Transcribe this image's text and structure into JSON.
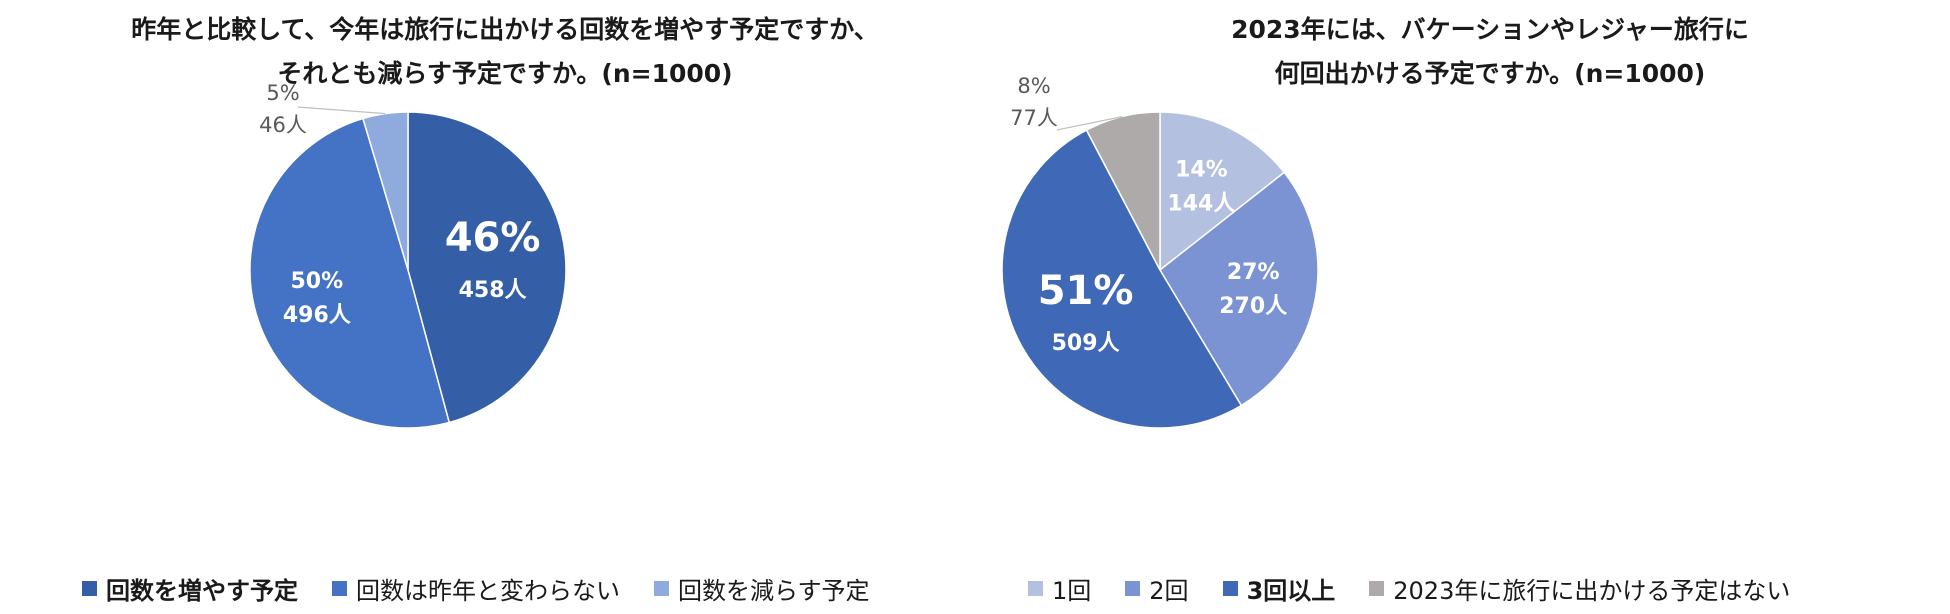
{
  "chart_data": [
    {
      "type": "pie",
      "title_lines": [
        "昨年と比較して、今年は旅行に出かける回数を増やす予定ですか、",
        "それとも減らす予定ですか。(n=1000)"
      ],
      "slices": [
        {
          "name": "回数を増やす予定",
          "percent": 46,
          "count": 458,
          "percent_label": "46%",
          "count_label": "458人",
          "color": "#345ea5",
          "label_style": "inside-large",
          "legend_bold": true
        },
        {
          "name": "回数は昨年と変わらない",
          "percent": 50,
          "count": 496,
          "percent_label": "50%",
          "count_label": "496人",
          "color": "#4472c4",
          "label_style": "inside",
          "legend_bold": false
        },
        {
          "name": "回数を減らす予定",
          "percent": 5,
          "count": 46,
          "percent_label": "5%",
          "count_label": "46人",
          "color": "#8faadc",
          "label_style": "outside",
          "legend_bold": false
        }
      ]
    },
    {
      "type": "pie",
      "title_lines": [
        "2023年には、バケーションやレジャー旅行に",
        "何回出かける予定ですか。(n=1000)"
      ],
      "slices": [
        {
          "name": "1回",
          "percent": 14,
          "count": 144,
          "percent_label": "14%",
          "count_label": "144人",
          "color": "#b4c0e0",
          "label_style": "inside",
          "legend_bold": false
        },
        {
          "name": "2回",
          "percent": 27,
          "count": 270,
          "percent_label": "27%",
          "count_label": "270人",
          "color": "#7b93d2",
          "label_style": "inside",
          "legend_bold": false
        },
        {
          "name": "3回以上",
          "percent": 51,
          "count": 509,
          "percent_label": "51%",
          "count_label": "509人",
          "color": "#3f69b6",
          "label_style": "inside-large",
          "legend_bold": true
        },
        {
          "name": "2023年に旅行に出かける予定はない",
          "percent": 8,
          "count": 77,
          "percent_label": "8%",
          "count_label": "77人",
          "color": "#aeaaaa",
          "label_style": "outside",
          "legend_bold": false
        }
      ]
    }
  ]
}
